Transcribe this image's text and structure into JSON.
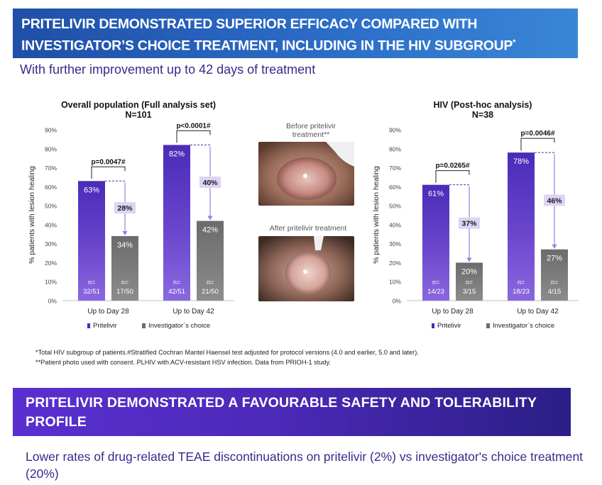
{
  "header": {
    "title": "PRITELIVIR DEMONSTRATED SUPERIOR EFFICACY COMPARED WITH INVESTIGATOR’S CHOICE TREATMENT, INCLUDING IN THE HIV SUBGROUP",
    "title_mark": "*",
    "subtitle": "With further improvement up to 42 days of treatment"
  },
  "colors": {
    "pritelivir": "#4a2bb8",
    "pritelivir_light": "#8a68e0",
    "investigator": "#6b6b6b",
    "investigator_light": "#8c8c8c",
    "banner1": "#1f4fa8",
    "banner2": "#4c2ab9",
    "diff_box": "#ddd4f5"
  },
  "chart_data": [
    {
      "type": "bar",
      "title": "Overall population (Full analysis set)",
      "subtitle": "N=101",
      "ylabel": "% patients with lesion healing",
      "ylim": [
        0,
        90
      ],
      "yticks": [
        "0%",
        "10%",
        "20%",
        "30%",
        "40%",
        "50%",
        "60%",
        "70%",
        "80%",
        "90%"
      ],
      "categories": [
        "Up to Day 28",
        "Up to Day 42"
      ],
      "series": [
        {
          "name": "Pritelivir",
          "values": [
            63,
            82
          ],
          "labels": [
            "63%",
            "82%"
          ],
          "n_label": "n=",
          "n": [
            "32/51",
            "42/51"
          ]
        },
        {
          "name": "Investigator´s choice",
          "values": [
            34,
            42
          ],
          "labels": [
            "34%",
            "42%"
          ],
          "n_label": "n=",
          "n": [
            "17/50",
            "21/50"
          ]
        }
      ],
      "differences": [
        "28%",
        "40%"
      ],
      "pvalues": [
        "p=0.0047#",
        "p<0.0001#"
      ]
    },
    {
      "type": "bar",
      "title": "HIV (Post-hoc analysis)",
      "subtitle": "N=38",
      "ylabel": "% patients with lesion healing",
      "ylim": [
        0,
        90
      ],
      "yticks": [
        "0%",
        "10%",
        "20%",
        "30%",
        "40%",
        "50%",
        "60%",
        "70%",
        "80%",
        "90%"
      ],
      "categories": [
        "Up to Day 28",
        "Up to Day 42"
      ],
      "series": [
        {
          "name": "Pritelivir",
          "values": [
            61,
            78
          ],
          "labels": [
            "61%",
            "78%"
          ],
          "n_label": "n=",
          "n": [
            "14/23",
            "18/23"
          ]
        },
        {
          "name": "Investigator´s choice",
          "values": [
            20,
            27
          ],
          "labels": [
            "20%",
            "27%"
          ],
          "n_label": "n=",
          "n": [
            "3/15",
            "4/15"
          ]
        }
      ],
      "differences": [
        "37%",
        "46%"
      ],
      "pvalues": [
        "p=0.0265#",
        "p=0.0046#"
      ]
    }
  ],
  "photos": {
    "before_caption": "Before pritelivir treatment**",
    "after_caption": "After pritelivir treatment"
  },
  "footnotes": {
    "line1": "*Total HIV subgroup of patients.#Stratified Cochran Mantel Haensel test adjusted for protocol versions (4.0 and earlier, 5.0 and later).",
    "line2": "**Patient photo used with consent. PLHIV with ACV-resistant HSV infection. Data from PRIOH-1 study."
  },
  "safety": {
    "title": "PRITELIVIR DEMONSTRATED A FAVOURABLE SAFETY AND TOLERABILITY PROFILE",
    "subtitle": "Lower rates of drug-related TEAE discontinuations on pritelivir (2%) vs investigator's choice treatment (20%)"
  }
}
